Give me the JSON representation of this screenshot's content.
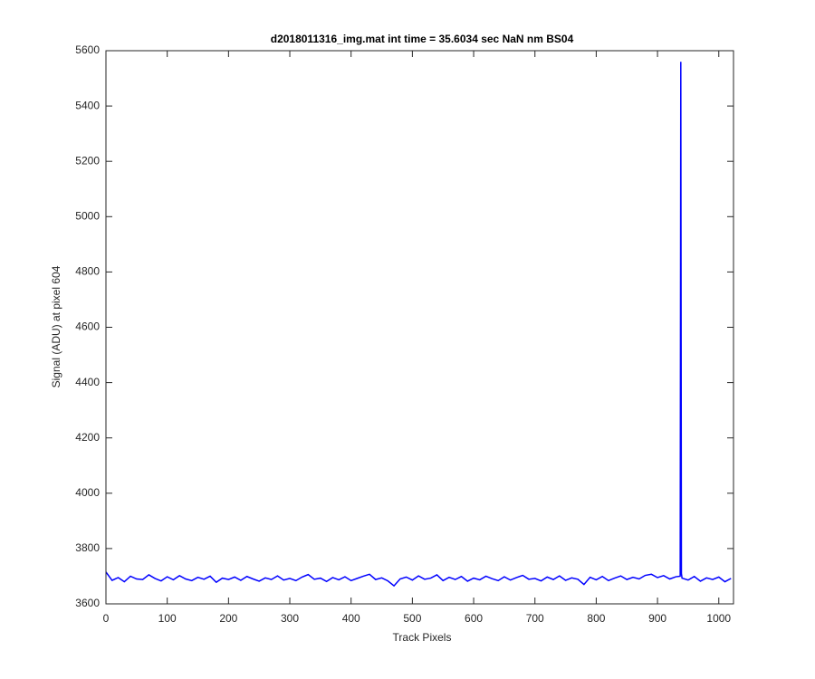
{
  "chart_data": {
    "type": "line",
    "title": "d2018011316_img.mat int time = 35.6034 sec  NaN nm BS04",
    "xlabel": "Track Pixels",
    "ylabel": "Signal (ADU) at pixel 604",
    "color": "#0000ff",
    "xlim": [
      0,
      1024
    ],
    "ylim": [
      3600,
      5600
    ],
    "xticks": [
      0,
      100,
      200,
      300,
      400,
      500,
      600,
      700,
      800,
      900,
      1000
    ],
    "yticks": [
      3600,
      3800,
      4000,
      4200,
      4400,
      4600,
      4800,
      5000,
      5200,
      5400,
      5600
    ],
    "x": [
      0,
      10,
      20,
      30,
      40,
      50,
      60,
      70,
      80,
      90,
      100,
      110,
      120,
      130,
      140,
      150,
      160,
      170,
      180,
      190,
      200,
      210,
      220,
      230,
      240,
      250,
      260,
      270,
      280,
      290,
      300,
      310,
      320,
      330,
      340,
      350,
      360,
      370,
      380,
      390,
      400,
      410,
      420,
      430,
      440,
      450,
      460,
      470,
      480,
      490,
      500,
      510,
      520,
      530,
      540,
      550,
      560,
      570,
      580,
      590,
      600,
      610,
      620,
      630,
      640,
      650,
      660,
      670,
      680,
      690,
      700,
      710,
      720,
      730,
      740,
      750,
      760,
      770,
      780,
      790,
      800,
      810,
      820,
      830,
      840,
      850,
      860,
      870,
      880,
      890,
      900,
      910,
      920,
      930,
      937,
      938,
      939,
      940,
      950,
      960,
      970,
      980,
      990,
      1000,
      1010,
      1020
    ],
    "values": [
      3715,
      3685,
      3695,
      3680,
      3700,
      3690,
      3688,
      3705,
      3692,
      3683,
      3698,
      3687,
      3702,
      3690,
      3684,
      3696,
      3689,
      3700,
      3678,
      3693,
      3688,
      3697,
      3685,
      3699,
      3690,
      3682,
      3694,
      3688,
      3701,
      3686,
      3692,
      3684,
      3697,
      3706,
      3689,
      3693,
      3681,
      3695,
      3687,
      3698,
      3684,
      3692,
      3700,
      3707,
      3688,
      3694,
      3683,
      3665,
      3690,
      3697,
      3686,
      3701,
      3689,
      3693,
      3705,
      3684,
      3696,
      3688,
      3699,
      3682,
      3693,
      3687,
      3700,
      3691,
      3684,
      3698,
      3686,
      3695,
      3703,
      3689,
      3692,
      3683,
      3697,
      3688,
      3701,
      3685,
      3694,
      3689,
      3670,
      3696,
      3687,
      3699,
      3684,
      3693,
      3701,
      3688,
      3696,
      3690,
      3703,
      3707,
      3695,
      3702,
      3690,
      3698,
      3700,
      5560,
      3710,
      3693,
      3686,
      3699,
      3682,
      3694,
      3688,
      3697,
      3680,
      3692
    ]
  }
}
